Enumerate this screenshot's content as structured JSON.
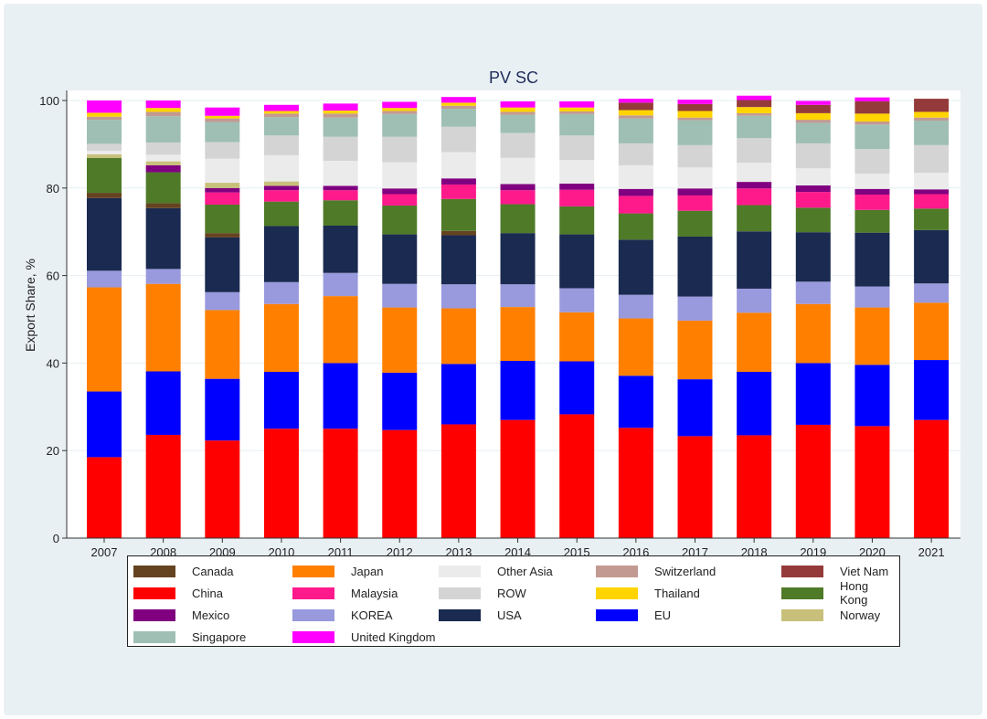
{
  "chart_data": {
    "type": "bar",
    "stacked": true,
    "title": "PV SC",
    "ylabel": "Export Share, %",
    "xlabel": "",
    "ylim": [
      0,
      100
    ],
    "yticks": [
      "0",
      "20",
      "40",
      "60",
      "80",
      "100"
    ],
    "grid": true,
    "legend_position": "bottom",
    "categories": [
      "2007",
      "2008",
      "2009",
      "2010",
      "2011",
      "2012",
      "2013",
      "2014",
      "2015",
      "2016",
      "2017",
      "2018",
      "2019",
      "2020",
      "2021"
    ],
    "series": [
      {
        "name": "China",
        "color": "#ff0000",
        "values": [
          18.5,
          23.6,
          22.3,
          25.0,
          25.0,
          24.7,
          26.0,
          27.0,
          28.3,
          25.2,
          23.3,
          23.5,
          25.9,
          25.6,
          27.0
        ]
      },
      {
        "name": "EU",
        "color": "#0000ff",
        "values": [
          15.0,
          14.5,
          14.1,
          13.0,
          15.0,
          13.1,
          13.8,
          13.5,
          12.1,
          11.9,
          13.0,
          14.5,
          14.1,
          14.0,
          13.7
        ]
      },
      {
        "name": "Japan",
        "color": "#ff8000",
        "values": [
          23.8,
          20.0,
          15.7,
          15.5,
          15.3,
          14.9,
          12.7,
          12.3,
          11.2,
          13.1,
          13.4,
          13.5,
          13.5,
          13.1,
          13.1
        ]
      },
      {
        "name": "KOREA",
        "color": "#9999dd",
        "values": [
          3.8,
          3.4,
          4.1,
          5.0,
          5.3,
          5.4,
          5.5,
          5.2,
          5.5,
          5.4,
          5.5,
          5.5,
          5.1,
          4.8,
          4.4
        ]
      },
      {
        "name": "USA",
        "color": "#1a2a50",
        "values": [
          16.6,
          13.9,
          12.5,
          12.8,
          10.8,
          11.3,
          11.2,
          11.7,
          12.3,
          12.6,
          13.7,
          13.1,
          11.3,
          12.3,
          12.2
        ]
      },
      {
        "name": "Canada",
        "color": "#654321",
        "values": [
          1.2,
          1.1,
          1.0,
          0.0,
          0.0,
          0.0,
          1.0,
          0.0,
          0.0,
          0.0,
          0.0,
          0.0,
          0.0,
          0.0,
          0.0
        ]
      },
      {
        "name": "Hong Kong",
        "color": "#4f7a28",
        "values": [
          8.0,
          7.1,
          6.5,
          5.6,
          5.8,
          6.6,
          7.3,
          6.6,
          6.4,
          6.0,
          5.9,
          6.0,
          5.6,
          5.2,
          4.9
        ]
      },
      {
        "name": "Malaysia",
        "color": "#ff1a8c",
        "values": [
          0.0,
          0.0,
          2.8,
          2.6,
          2.3,
          2.6,
          3.3,
          3.2,
          3.8,
          4.0,
          3.5,
          3.8,
          3.6,
          3.5,
          3.3
        ]
      },
      {
        "name": "Mexico",
        "color": "#800080",
        "values": [
          0.0,
          1.6,
          1.0,
          1.0,
          1.0,
          1.3,
          1.4,
          1.4,
          1.4,
          1.6,
          1.6,
          1.5,
          1.5,
          1.3,
          1.1
        ]
      },
      {
        "name": "Norway",
        "color": "#c8c07a",
        "values": [
          0.8,
          0.9,
          1.2,
          1.0,
          0.0,
          0.0,
          0.0,
          0.0,
          0.0,
          0.0,
          0.0,
          0.0,
          0.0,
          0.0,
          0.0
        ]
      },
      {
        "name": "Other Asia",
        "color": "#ebebeb",
        "values": [
          0.8,
          1.5,
          5.5,
          6.0,
          5.7,
          6.0,
          6.0,
          6.0,
          5.4,
          5.4,
          4.8,
          4.4,
          3.9,
          3.5,
          3.8
        ]
      },
      {
        "name": "ROW",
        "color": "#d4d4d4",
        "values": [
          1.6,
          2.8,
          3.8,
          4.5,
          5.5,
          5.8,
          5.8,
          5.7,
          5.6,
          5.0,
          5.1,
          5.6,
          5.7,
          5.6,
          6.3
        ]
      },
      {
        "name": "Singapore",
        "color": "#9fbfb4",
        "values": [
          5.5,
          6.0,
          4.6,
          4.2,
          4.4,
          5.2,
          4.1,
          4.1,
          4.9,
          5.7,
          5.7,
          5.1,
          4.7,
          5.6,
          5.6
        ]
      },
      {
        "name": "Switzerland",
        "color": "#c29a92",
        "values": [
          0.7,
          1.0,
          0.8,
          0.8,
          0.9,
          0.7,
          0.7,
          0.7,
          0.6,
          0.7,
          0.6,
          0.6,
          0.7,
          0.7,
          0.7
        ]
      },
      {
        "name": "Thailand",
        "color": "#ffd400",
        "values": [
          0.9,
          0.9,
          0.6,
          0.6,
          0.7,
          0.7,
          0.7,
          1.0,
          0.9,
          1.2,
          1.5,
          1.4,
          1.5,
          1.8,
          1.3
        ]
      },
      {
        "name": "Viet Nam",
        "color": "#943a3a",
        "values": [
          0.0,
          0.0,
          0.0,
          0.0,
          0.0,
          0.0,
          0.0,
          0.0,
          0.0,
          1.7,
          1.6,
          1.6,
          1.9,
          2.8,
          3.0
        ]
      },
      {
        "name": "United Kingdom",
        "color": "#ff00ff",
        "values": [
          2.8,
          1.7,
          1.9,
          1.4,
          1.6,
          1.4,
          1.3,
          1.4,
          1.4,
          0.9,
          1.0,
          1.0,
          0.9,
          0.9,
          0.0
        ]
      }
    ]
  },
  "legend": [
    {
      "label": "Canada",
      "color": "#654321"
    },
    {
      "label": "Japan",
      "color": "#ff8000"
    },
    {
      "label": "Other Asia",
      "color": "#ebebeb"
    },
    {
      "label": "Switzerland",
      "color": "#c29a92"
    },
    {
      "label": "Viet Nam",
      "color": "#943a3a"
    },
    {
      "label": "China",
      "color": "#ff0000"
    },
    {
      "label": "Malaysia",
      "color": "#ff1a8c"
    },
    {
      "label": "ROW",
      "color": "#d4d4d4"
    },
    {
      "label": "Thailand",
      "color": "#ffd400"
    },
    {
      "label": "Hong Kong",
      "color": "#4f7a28"
    },
    {
      "label": "Mexico",
      "color": "#800080"
    },
    {
      "label": "KOREA",
      "color": "#9999dd"
    },
    {
      "label": "USA",
      "color": "#1a2a50"
    },
    {
      "label": "EU",
      "color": "#0000ff"
    },
    {
      "label": "Norway",
      "color": "#c8c07a"
    },
    {
      "label": "Singapore",
      "color": "#9fbfb4"
    },
    {
      "label": "United Kingdom",
      "color": "#ff00ff"
    }
  ]
}
